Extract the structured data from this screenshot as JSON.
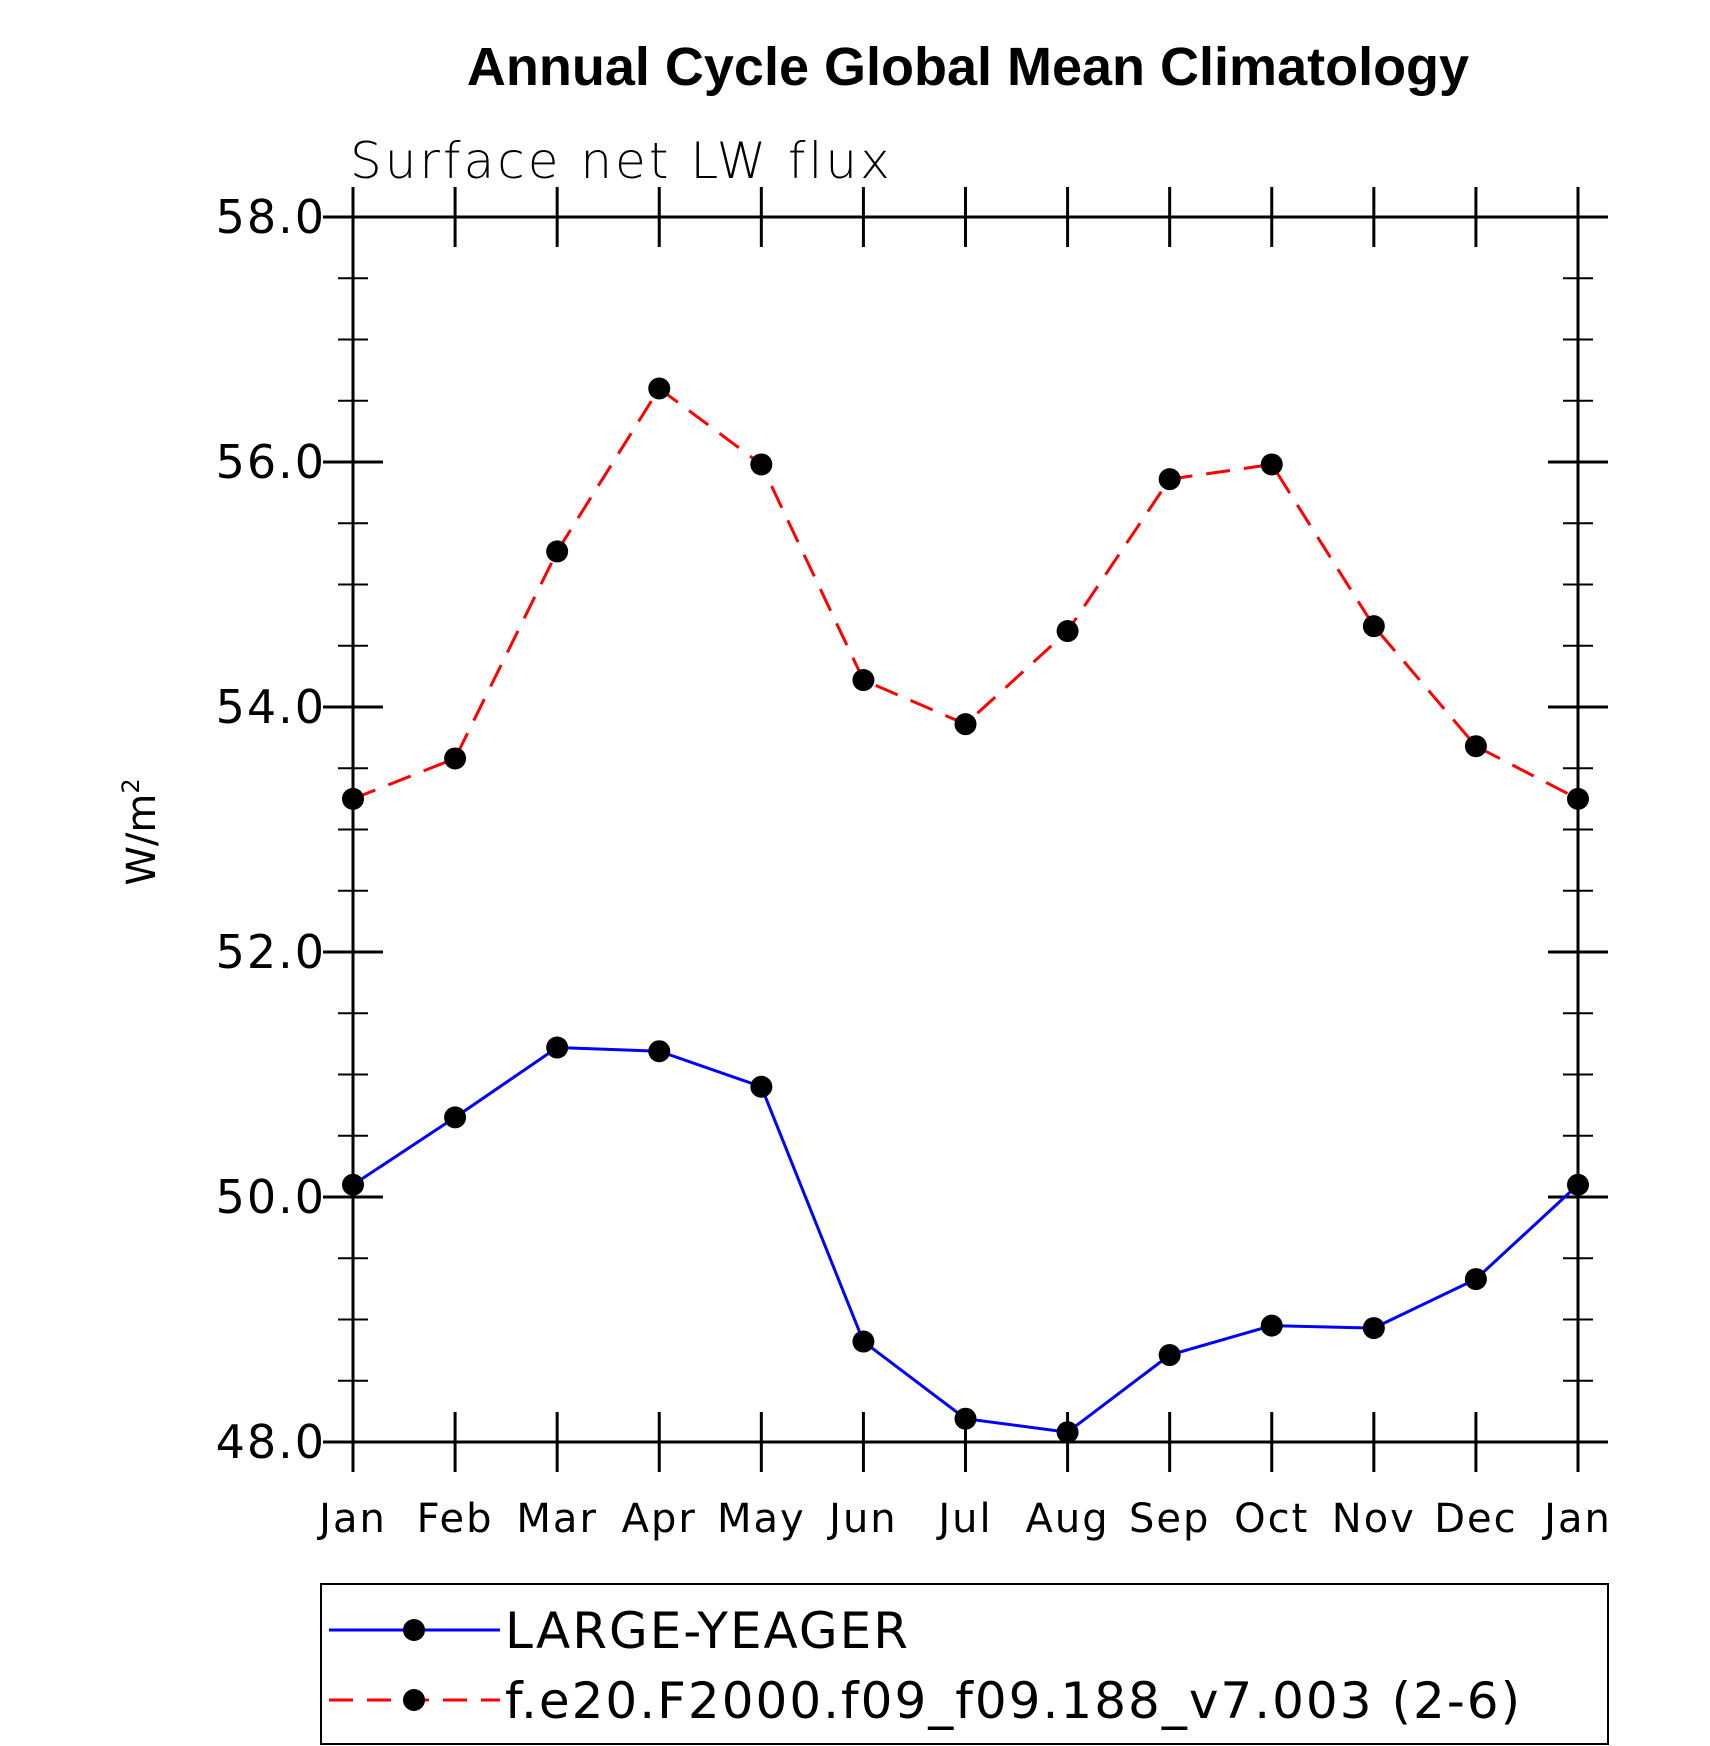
{
  "chart_data": {
    "type": "line",
    "title": "Annual Cycle Global Mean Climatology",
    "subtitle": "Surface net LW flux",
    "ylabel_base": "W/m",
    "ylabel_sup": "2",
    "ylim": [
      48.0,
      58.0
    ],
    "yticks": [
      "48.0",
      "50.0",
      "52.0",
      "54.0",
      "56.0",
      "58.0"
    ],
    "categories": [
      "Jan",
      "Feb",
      "Mar",
      "Apr",
      "May",
      "Jun",
      "Jul",
      "Aug",
      "Sep",
      "Oct",
      "Nov",
      "Dec",
      "Jan"
    ],
    "legend_placement": "bottom",
    "series": [
      {
        "name": "LARGE-YEAGER",
        "color": "#0000ff",
        "style": "solid",
        "values": [
          50.1,
          50.65,
          51.22,
          51.19,
          50.9,
          48.82,
          48.19,
          48.08,
          48.71,
          48.95,
          48.93,
          49.33,
          50.1
        ]
      },
      {
        "name": "f.e20.F2000.f09_f09.188_v7.003 (2-6)",
        "color": "#ff0000",
        "style": "dashed",
        "values": [
          53.25,
          53.58,
          55.27,
          56.6,
          55.98,
          54.22,
          53.86,
          54.62,
          55.86,
          55.98,
          54.66,
          53.68,
          53.25
        ]
      }
    ]
  }
}
